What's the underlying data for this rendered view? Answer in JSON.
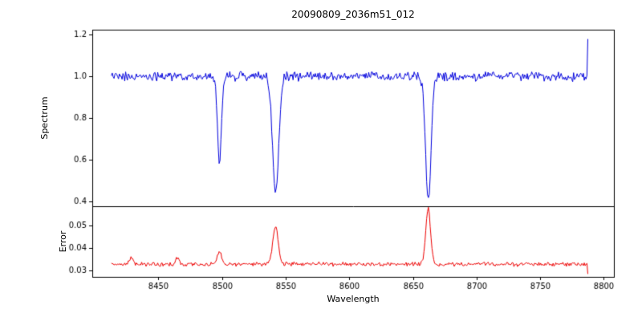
{
  "chart_data": {
    "type": "line",
    "title": "20090809_2036m51_012",
    "xlabel": "Wavelength",
    "x_axis_range": [
      8398,
      8808
    ],
    "x_ticks": [
      8450,
      8500,
      8550,
      8600,
      8650,
      8700,
      8750,
      8800
    ],
    "x_range": [
      8413,
      8788
    ],
    "sample_step": 0.7,
    "noise_seed": 20090809,
    "grid": false,
    "legend": "none",
    "panels": [
      {
        "ylabel": "Spectrum",
        "color": "#0000dd",
        "ylim": [
          0.375,
          1.225
        ],
        "yticks": [
          0.4,
          0.6,
          0.8,
          1.0,
          1.2
        ],
        "ytick_decimals": 1,
        "continuum": 1.0,
        "noise_amplitude": 0.027,
        "absorption_lines": [
          {
            "center": 8498.0,
            "depth": 0.41,
            "sigma": 1.6
          },
          {
            "center": 8542.1,
            "depth": 0.56,
            "sigma": 2.4
          },
          {
            "center": 8662.1,
            "depth": 0.6,
            "sigma": 2.1
          }
        ],
        "edge_spike": {
          "x": 8788,
          "value": 1.18
        }
      },
      {
        "ylabel": "Error",
        "color": "#ee0000",
        "ylim": [
          0.0272,
          0.0585
        ],
        "yticks": [
          0.03,
          0.04,
          0.05
        ],
        "ytick_decimals": 2,
        "baseline": 0.0328,
        "noise_amplitude": 0.0011,
        "peaks": [
          {
            "center": 8429,
            "height": 0.003,
            "sigma": 1.5
          },
          {
            "center": 8465,
            "height": 0.003,
            "sigma": 1.5
          },
          {
            "center": 8498,
            "height": 0.0055,
            "sigma": 1.8
          },
          {
            "center": 8542,
            "height": 0.0165,
            "sigma": 2.2
          },
          {
            "center": 8662,
            "height": 0.0245,
            "sigma": 1.9
          }
        ],
        "edge_drop": {
          "x": 8788,
          "value": 0.0285
        }
      }
    ]
  }
}
